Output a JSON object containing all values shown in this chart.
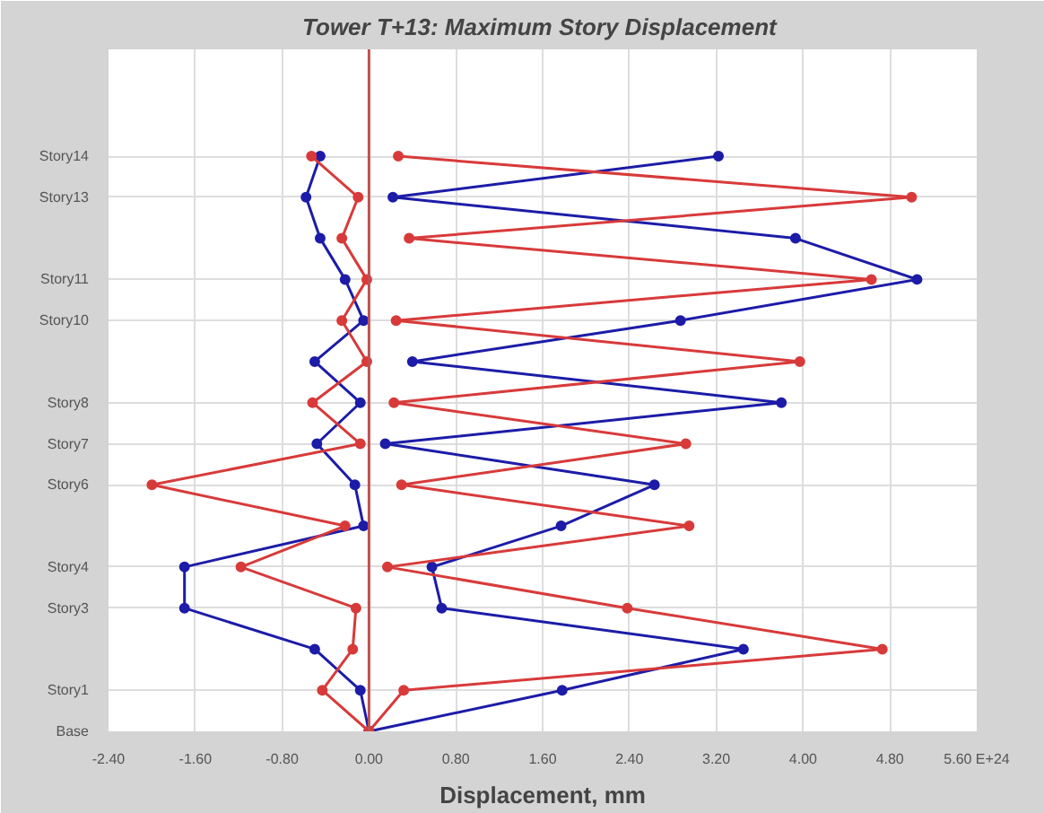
{
  "chart_data": {
    "type": "line",
    "orientation": "horizontal",
    "title": "Tower T+13:  Maximum Story Displacement",
    "xlabel": "Displacement, mm",
    "categories": [
      "Story14",
      "Story13",
      null,
      "Story11",
      "Story10",
      null,
      "Story8",
      "Story7",
      "Story6",
      null,
      "Story4",
      "Story3",
      null,
      "Story1",
      "Base"
    ],
    "series": [
      {
        "color": "#1c1ca8",
        "values": [
          3.22,
          0.22,
          3.93,
          5.05,
          2.87,
          0.4,
          3.8,
          0.15,
          2.63,
          1.77,
          0.58,
          0.67,
          3.45,
          1.78,
          0
        ]
      },
      {
        "color": "#d83a3a",
        "values": [
          0.27,
          5.0,
          0.37,
          4.63,
          0.25,
          3.97,
          0.23,
          2.92,
          0.3,
          2.95,
          0.17,
          2.38,
          4.73,
          0.32,
          0
        ]
      },
      {
        "color": "#1c1ca8",
        "values": [
          -0.45,
          -0.58,
          -0.45,
          -0.22,
          -0.05,
          -0.5,
          -0.08,
          -0.48,
          -0.13,
          -0.05,
          -1.7,
          -1.7,
          -0.5,
          -0.08,
          0
        ]
      },
      {
        "color": "#d83a3a",
        "values": [
          -0.53,
          -0.1,
          -0.25,
          -0.02,
          -0.25,
          -0.02,
          -0.52,
          -0.08,
          -2.0,
          -0.22,
          -1.18,
          -0.12,
          -0.15,
          -0.43,
          0
        ]
      }
    ],
    "xlim": [
      -2.4,
      5.6
    ],
    "xticks": [
      {
        "value": -2.4,
        "label": "-2.40"
      },
      {
        "value": -1.6,
        "label": "-1.60"
      },
      {
        "value": -0.8,
        "label": "-0.80"
      },
      {
        "value": 0,
        "label": "0.00"
      },
      {
        "value": 0.8,
        "label": "0.80"
      },
      {
        "value": 1.6,
        "label": "1.60"
      },
      {
        "value": 2.4,
        "label": "2.40"
      },
      {
        "value": 3.2,
        "label": "3.20"
      },
      {
        "value": 4.0,
        "label": "4.00"
      },
      {
        "value": 4.8,
        "label": "4.80"
      },
      {
        "value": 5.6,
        "label": "5.60 E+24"
      }
    ],
    "ref_lines": [
      {
        "axis": "x",
        "value": 0,
        "color": "#c05050"
      }
    ],
    "grid": true,
    "marker": "circle",
    "line_style": "solid"
  }
}
